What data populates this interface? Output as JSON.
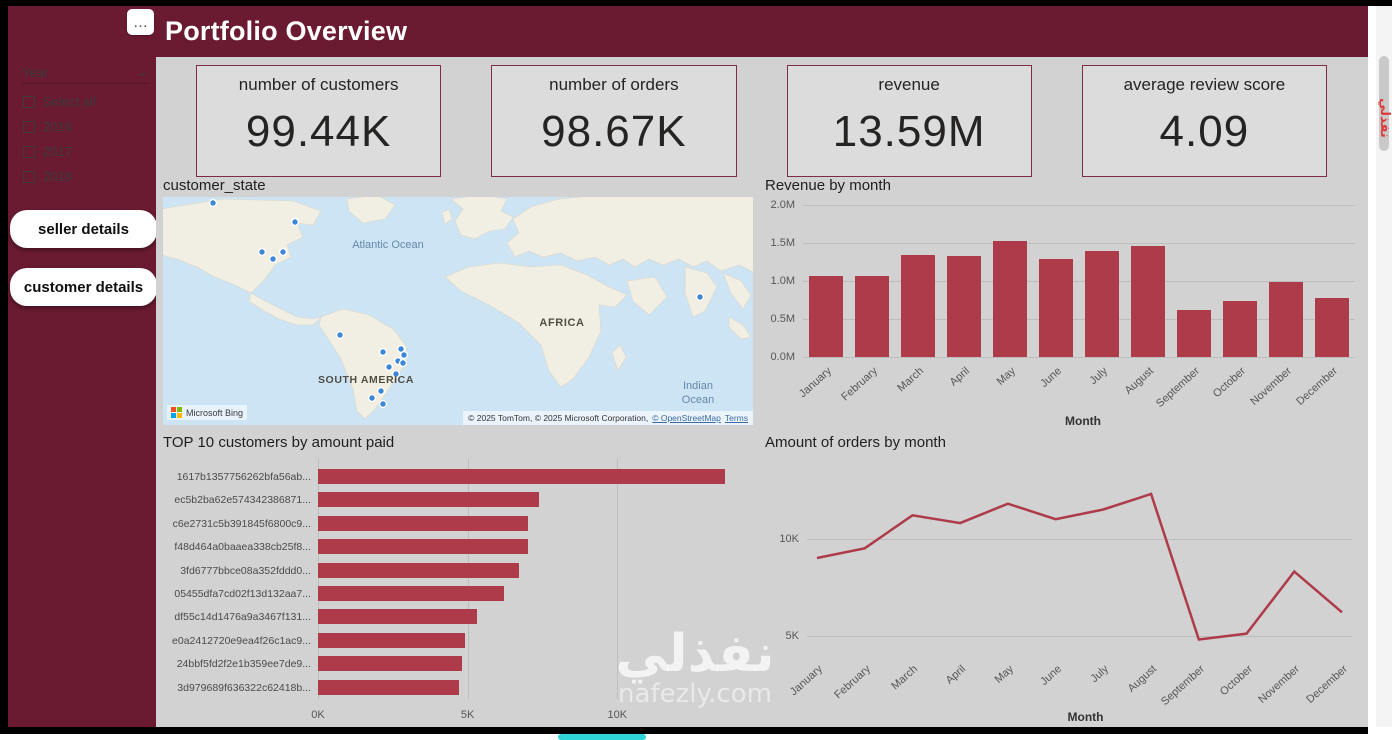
{
  "colors": {
    "maroon": "#6A1B31",
    "accent": "#AE3B49",
    "canvas": "#D2D2D2",
    "card": "#DCDCDC",
    "card-border": "#7E2D42",
    "ink": "#252423",
    "axis": "#565656",
    "grid": "#BDBDBD",
    "ocean": "#CDE4F5",
    "land": "#F1EEE3",
    "marker": "#3B88D8",
    "scroll-thumb": "#C9C9C9",
    "teal": "#2FD4D9"
  },
  "icons": {
    "more_options": "…",
    "chevron_down": "⌄"
  },
  "header": {
    "title": "Portfolio Overview"
  },
  "sidebar": {
    "slicer_title": "Year",
    "options": [
      "Select all",
      "2016",
      "2017",
      "2018"
    ],
    "buttons": [
      "seller details",
      "customer details"
    ]
  },
  "kpis": [
    {
      "label": "number of customers",
      "value": "99.44K"
    },
    {
      "label": "number of orders",
      "value": "98.67K"
    },
    {
      "label": "revenue",
      "value": "13.59M"
    },
    {
      "label": "average review score",
      "value": "4.09"
    }
  ],
  "map": {
    "title": "customer_state",
    "labels": {
      "atlantic": "Atlantic Ocean",
      "africa": "AFRICA",
      "south_america": "SOUTH AMERICA",
      "indian": "Indian Ocean"
    },
    "attribution": {
      "logo": "Microsoft Bing",
      "text": "© 2025 TomTom, © 2025 Microsoft Corporation,",
      "link_osm": "© OpenStreetMap",
      "link_terms": "Terms"
    },
    "markers": [
      [
        50,
        6
      ],
      [
        132,
        25
      ],
      [
        99,
        55
      ],
      [
        120,
        55
      ],
      [
        110,
        62
      ],
      [
        177,
        138
      ],
      [
        220,
        155
      ],
      [
        238,
        152
      ],
      [
        241,
        158
      ],
      [
        235,
        164
      ],
      [
        226,
        170
      ],
      [
        240,
        166
      ],
      [
        233,
        177
      ],
      [
        218,
        194
      ],
      [
        209,
        201
      ],
      [
        220,
        207
      ],
      [
        537,
        100
      ]
    ]
  },
  "chart_data": [
    {
      "type": "bar",
      "title": "Revenue by month",
      "xlabel": "Month",
      "ylabel": "",
      "categories": [
        "January",
        "February",
        "March",
        "April",
        "May",
        "June",
        "July",
        "August",
        "September",
        "October",
        "November",
        "December"
      ],
      "values": [
        1.07,
        1.07,
        1.34,
        1.33,
        1.53,
        1.29,
        1.4,
        1.46,
        0.62,
        0.74,
        0.99,
        0.77
      ],
      "unit": "M",
      "ylim": [
        0,
        2
      ],
      "yticks": [
        {
          "v": 0,
          "label": "0.0M"
        },
        {
          "v": 0.5,
          "label": "0.5M"
        },
        {
          "v": 1,
          "label": "1.0M"
        },
        {
          "v": 1.5,
          "label": "1.5M"
        },
        {
          "v": 2,
          "label": "2.0M"
        }
      ],
      "legend": "none",
      "grid": "horizontal"
    },
    {
      "type": "bar",
      "orientation": "horizontal",
      "title": "TOP 10 customers by amount paid",
      "xlabel": "",
      "categories": [
        "1617b1357756262bfa56ab...",
        "ec5b2ba62e574342386871...",
        "c6e2731c5b391845f6800c9...",
        "f48d464a0baaea338cb25f8...",
        "3fd6777bbce08a352fddd0...",
        "05455dfa7cd02f13d132aa7...",
        "df55c14d1476a9a3467f131...",
        "e0a2412720e9ea4f26c1ac9...",
        "24bbf5fd2f2e1b359ee7de9...",
        "3d979689f636322c62418b..."
      ],
      "values": [
        13.6,
        7.4,
        7.0,
        7.0,
        6.7,
        6.2,
        5.3,
        4.9,
        4.8,
        4.7
      ],
      "unit": "K",
      "xlim": [
        0,
        14.3
      ],
      "xticks": [
        {
          "v": 0,
          "label": "0K"
        },
        {
          "v": 5,
          "label": "5K"
        },
        {
          "v": 10,
          "label": "10K"
        }
      ],
      "legend": "none",
      "grid": "vertical"
    },
    {
      "type": "line",
      "title": "Amount of orders by month",
      "xlabel": "Month",
      "categories": [
        "January",
        "February",
        "March",
        "April",
        "May",
        "June",
        "July",
        "August",
        "September",
        "October",
        "November",
        "December"
      ],
      "values": [
        9.0,
        9.5,
        11.2,
        10.8,
        11.8,
        11.0,
        11.5,
        12.3,
        4.8,
        5.1,
        8.3,
        6.2
      ],
      "unit": "K",
      "ylim": [
        4,
        14
      ],
      "yticks": [
        {
          "v": 5,
          "label": "5K"
        },
        {
          "v": 10,
          "label": "10K"
        }
      ],
      "legend": "none",
      "grid": "horizontal"
    }
  ],
  "watermark": {
    "center": "نفذلي",
    "center_sub": "nafezly.com",
    "side": "نفذلي"
  }
}
